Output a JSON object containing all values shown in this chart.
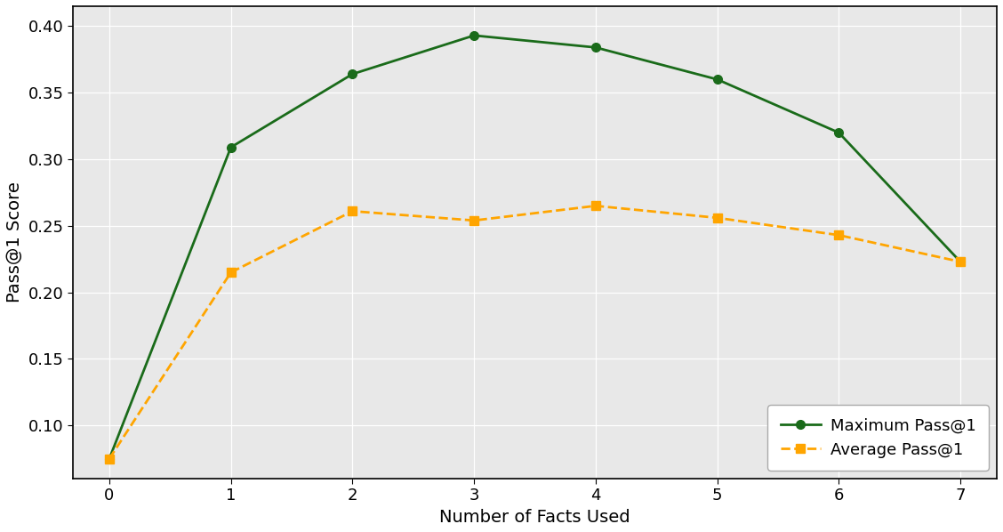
{
  "x": [
    0,
    1,
    2,
    3,
    4,
    5,
    6,
    7
  ],
  "max_pass1": [
    0.075,
    0.309,
    0.364,
    0.393,
    0.384,
    0.36,
    0.32,
    0.223
  ],
  "avg_pass1": [
    0.075,
    0.215,
    0.261,
    0.254,
    0.265,
    0.256,
    0.243,
    0.223
  ],
  "max_color": "#1a6b1a",
  "avg_color": "#ffa500",
  "xlabel": "Number of Facts Used",
  "ylabel": "Pass@1 Score",
  "ylim": [
    0.06,
    0.415
  ],
  "xlim": [
    -0.3,
    7.3
  ],
  "legend_max": "Maximum Pass@1",
  "legend_avg": "Average Pass@1",
  "yticks": [
    0.1,
    0.15,
    0.2,
    0.25,
    0.3,
    0.35,
    0.4
  ],
  "xticks": [
    0,
    1,
    2,
    3,
    4,
    5,
    6,
    7
  ],
  "figure_bg": "#ffffff",
  "axes_bg": "#e8e8e8",
  "grid_color": "#ffffff",
  "spine_color": "#000000"
}
